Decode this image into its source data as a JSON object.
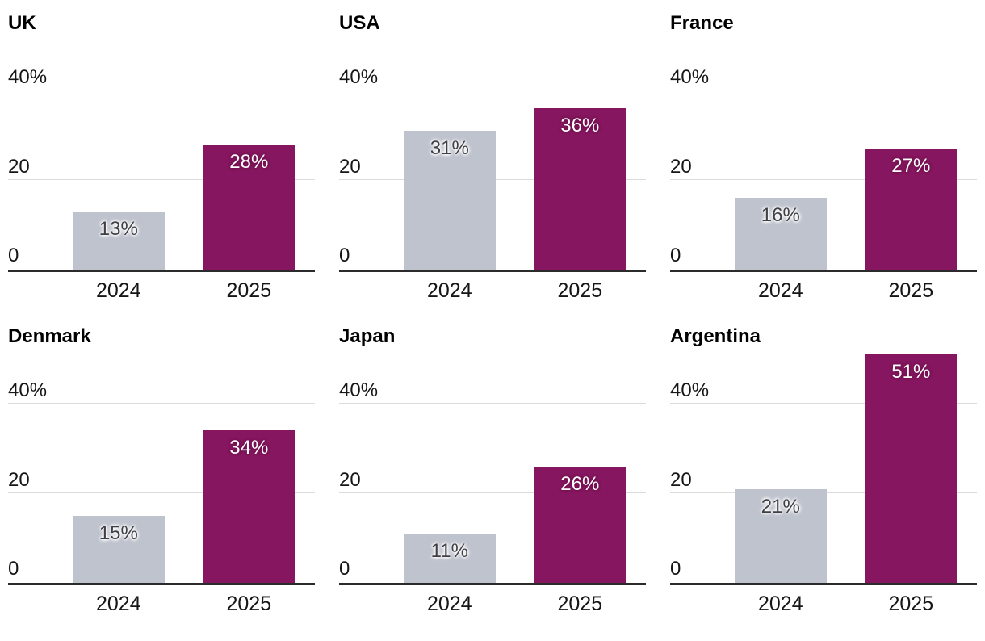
{
  "chart_data": {
    "type": "bar",
    "layout": "small-multiples-3x2",
    "categories": [
      "2024",
      "2025"
    ],
    "series_colors": {
      "2024": "#bfc3ce",
      "2025": "#86165f"
    },
    "grid": true,
    "ylim": [
      0,
      52
    ],
    "yticks": [
      {
        "value": 0,
        "label": "0"
      },
      {
        "value": 20,
        "label": "20"
      },
      {
        "value": 40,
        "label": "40%"
      }
    ],
    "panels": [
      {
        "title": "UK",
        "values": [
          13,
          28
        ],
        "labels": [
          "13%",
          "28%"
        ]
      },
      {
        "title": "USA",
        "values": [
          31,
          36
        ],
        "labels": [
          "31%",
          "36%"
        ]
      },
      {
        "title": "France",
        "values": [
          16,
          27
        ],
        "labels": [
          "16%",
          "27%"
        ]
      },
      {
        "title": "Denmark",
        "values": [
          15,
          34
        ],
        "labels": [
          "15%",
          "34%"
        ]
      },
      {
        "title": "Japan",
        "values": [
          11,
          26
        ],
        "labels": [
          "11%",
          "26%"
        ]
      },
      {
        "title": "Argentina",
        "values": [
          21,
          51
        ],
        "labels": [
          "21%",
          "51%"
        ]
      }
    ]
  }
}
